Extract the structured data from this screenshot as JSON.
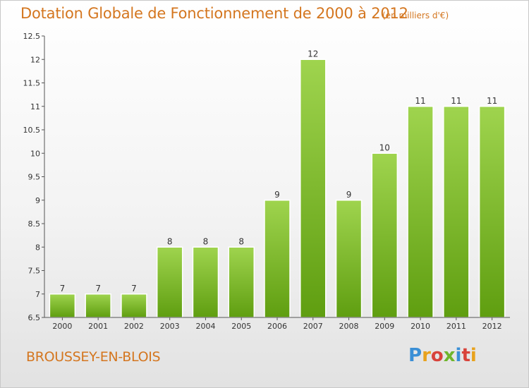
{
  "title": "Dotation Globale de Fonctionnement de 2000 à 2012",
  "subtitle": "(en milliers d'€)",
  "commune": "BROUSSEY-EN-BLOIS",
  "logo": {
    "letters": [
      "P",
      "r",
      "o",
      "x",
      "i",
      "t",
      "i"
    ]
  },
  "colors": {
    "text_accent": "#d4761f",
    "bar_light": "#9fd44e",
    "bar_dark": "#5f9e10",
    "axis": "#555555"
  },
  "chart_data": {
    "type": "bar",
    "categories": [
      "2000",
      "2001",
      "2002",
      "2003",
      "2004",
      "2005",
      "2006",
      "2007",
      "2008",
      "2009",
      "2010",
      "2011",
      "2012"
    ],
    "values": [
      7,
      7,
      7,
      8,
      8,
      8,
      9,
      12,
      9,
      10,
      11,
      11,
      11
    ],
    "value_labels": [
      "7",
      "7",
      "7",
      "8",
      "8",
      "8",
      "9",
      "12",
      "9",
      "10",
      "11",
      "11",
      "11"
    ],
    "ylim": [
      6.5,
      12.5
    ],
    "yticks": [
      6.5,
      7,
      7.5,
      8,
      8.5,
      9,
      9.5,
      10,
      10.5,
      11,
      11.5,
      12,
      12.5
    ],
    "ytick_labels": [
      "6.5",
      "7",
      "7.5",
      "8",
      "8.5",
      "9",
      "9.5",
      "10",
      "10.5",
      "11",
      "11.5",
      "12",
      "12.5"
    ],
    "grid": false,
    "legend": "none"
  }
}
